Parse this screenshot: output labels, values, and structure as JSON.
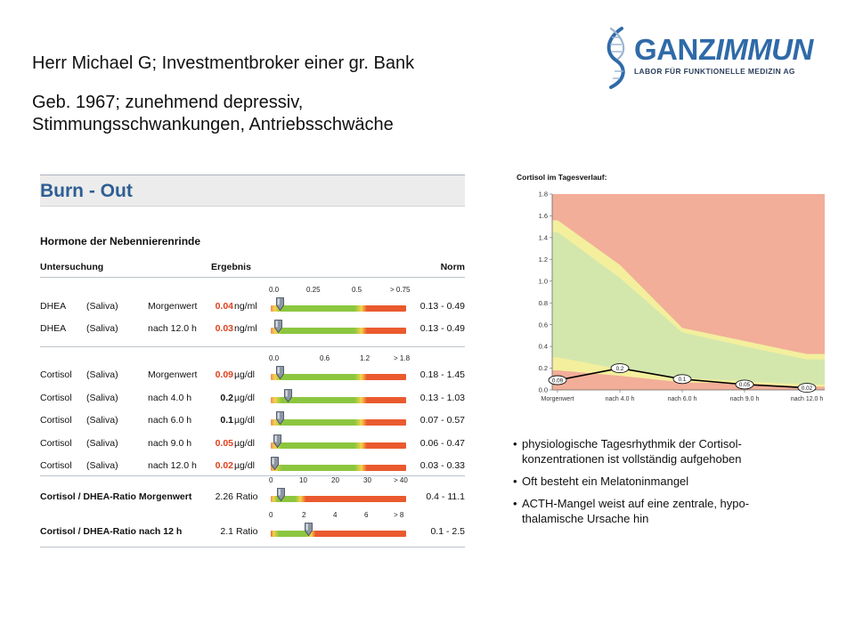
{
  "patient": {
    "line1": "Herr Michael G; Investmentbroker einer gr. Bank",
    "line2": "Geb. 1967; zunehmend depressiv,",
    "line3": "Stimmungsschwankungen,  Antriebsschwäche"
  },
  "logo": {
    "name_part1": "GANZ",
    "name_part2": "IMMUN",
    "tagline": "LABOR FÜR FUNKTIONELLE MEDIZIN AG"
  },
  "report": {
    "title": "Burn - Out",
    "subtitle": "Hormone der Nebennierenrinde",
    "col_untersuchung": "Untersuchung",
    "col_ergebnis": "Ergebnis",
    "col_norm": "Norm",
    "scale_dhea": [
      "0.0",
      "0.25",
      "0.5",
      "> 0.75"
    ],
    "scale_cortisol": [
      "0.0",
      "0.6",
      "1.2",
      "> 1.8"
    ],
    "scale_ratio_morning": [
      "0",
      "10",
      "20",
      "30",
      "> 40"
    ],
    "scale_ratio_12h": [
      "0",
      "2",
      "4",
      "6",
      "> 8"
    ],
    "dhea_rows": [
      {
        "name": "DHEA",
        "sample": "(Saliva)",
        "time": "Morgenwert",
        "value": "0.04",
        "unit": "ng/ml",
        "norm": "0.13 - 0.49",
        "flag": "red",
        "fraction": 0.05
      },
      {
        "name": "DHEA",
        "sample": "(Saliva)",
        "time": "nach 12.0 h",
        "value": "0.03",
        "unit": "ng/ml",
        "norm": "0.13 - 0.49",
        "flag": "red",
        "fraction": 0.04
      }
    ],
    "cortisol_rows": [
      {
        "name": "Cortisol",
        "sample": "(Saliva)",
        "time": "Morgenwert",
        "value": "0.09",
        "unit": "µg/dl",
        "norm": "0.18 - 1.45",
        "flag": "red",
        "fraction": 0.05
      },
      {
        "name": "Cortisol",
        "sample": "(Saliva)",
        "time": "nach 4.0 h",
        "value": "0.2",
        "unit": "µg/dl",
        "norm": "0.13 - 1.03",
        "flag": "none",
        "fraction": 0.11
      },
      {
        "name": "Cortisol",
        "sample": "(Saliva)",
        "time": "nach 6.0 h",
        "value": "0.1",
        "unit": "µg/dl",
        "norm": "0.07 - 0.57",
        "flag": "none",
        "fraction": 0.055
      },
      {
        "name": "Cortisol",
        "sample": "(Saliva)",
        "time": "nach 9.0 h",
        "value": "0.05",
        "unit": "µg/dl",
        "norm": "0.06 - 0.47",
        "flag": "red",
        "fraction": 0.03
      },
      {
        "name": "Cortisol",
        "sample": "(Saliva)",
        "time": "nach 12.0 h",
        "value": "0.02",
        "unit": "µg/dl",
        "norm": "0.03 - 0.33",
        "flag": "red",
        "fraction": 0.01
      }
    ],
    "ratio_rows": [
      {
        "label": "Cortisol / DHEA-Ratio Morgenwert",
        "value": "2.26",
        "unit": "Ratio",
        "norm": "0.4 - 11.1",
        "fraction": 0.056
      },
      {
        "label": "Cortisol / DHEA-Ratio nach 12 h",
        "value": "2.1",
        "unit": "Ratio",
        "norm": "0.1 - 2.5",
        "fraction": 0.26
      }
    ]
  },
  "chart_data": {
    "type": "line",
    "title": "Cortisol im Tagesverlauf:",
    "x": [
      "Morgenwert",
      "nach 4.0 h",
      "nach 6.0 h",
      "nach 9.0 h",
      "nach 12.0 h"
    ],
    "ylim": [
      0,
      1.8
    ],
    "yticks": [
      "0.0",
      "0.2",
      "0.4",
      "0.6",
      "0.8",
      "1.0",
      "1.2",
      "1.4",
      "1.6",
      "1.8"
    ],
    "series": [
      {
        "values": [
          0.09,
          0.2,
          0.1,
          0.05,
          0.02
        ],
        "labels": [
          "0.09",
          "0.2",
          "0.1",
          "0.05",
          "0.02"
        ],
        "color": "#000000"
      }
    ],
    "bands": {
      "green_upper": [
        1.45,
        1.03,
        0.53,
        0.4,
        0.28
      ],
      "green_lower": [
        0.3,
        0.19,
        0.11,
        0.08,
        0.05
      ],
      "yellow_upper": [
        1.56,
        1.15,
        0.57,
        0.45,
        0.33
      ],
      "yellow_lower": [
        0.18,
        0.13,
        0.07,
        0.06,
        0.03
      ]
    },
    "colors": {
      "red_zone": "#f2ae98",
      "yellow_zone": "#f3ef9d",
      "green_zone": "#d3e7ad"
    }
  },
  "bullets": [
    {
      "line1": "physiologische Tagesrhythmik der Cortisol-",
      "line2": "konzentrationen  ist vollständig aufgehoben"
    },
    {
      "line1": "Oft besteht ein Melatoninmangel",
      "line2": ""
    },
    {
      "line1": "ACTH-Mangel  weist auf eine zentrale, hypo-",
      "line2": "thalamische Ursache hin"
    }
  ],
  "colors": {
    "accent": "#2e5e93",
    "flag": "#e0401c"
  }
}
